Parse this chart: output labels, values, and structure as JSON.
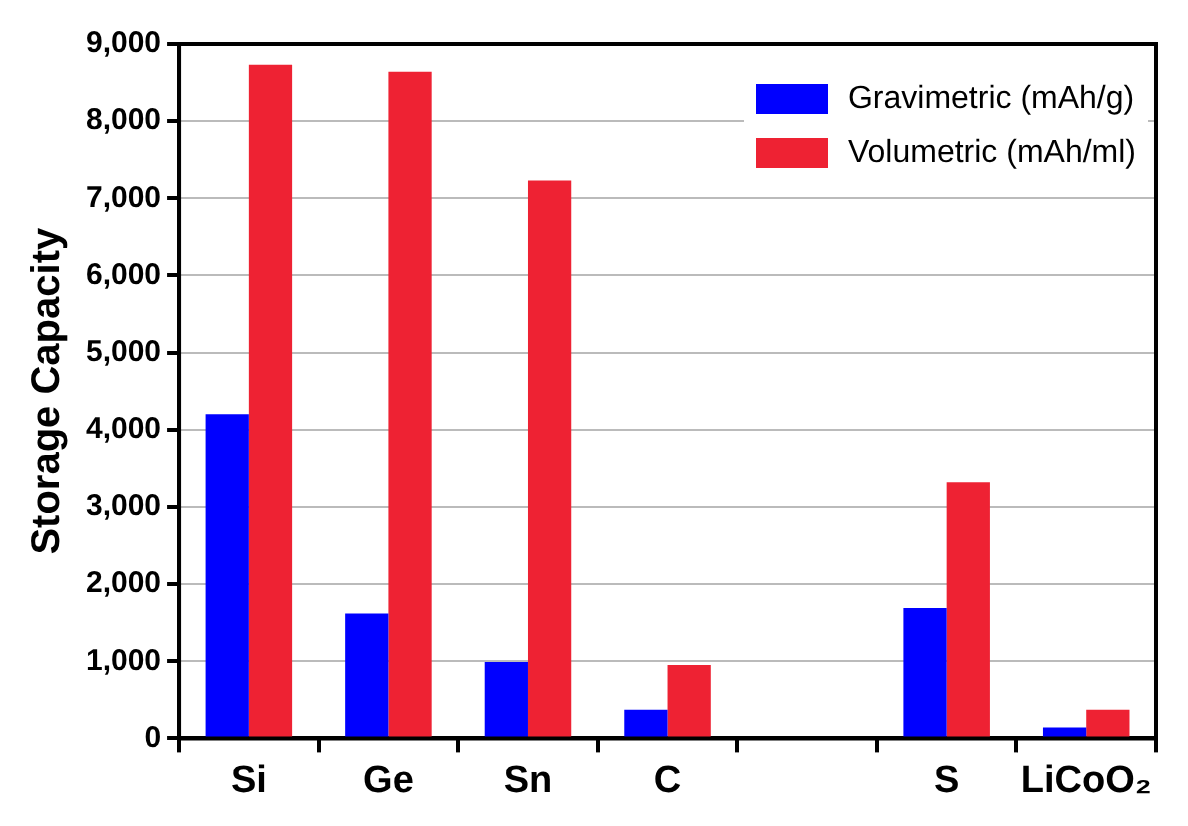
{
  "chart_data": {
    "type": "bar",
    "ylabel": "Storage Capacity",
    "categories": [
      "Si",
      "Ge",
      "Sn",
      "C",
      null,
      "S",
      "LiCoO₂"
    ],
    "series": [
      {
        "name": "Gravimetric (mAh/g)",
        "color": "#0000ff",
        "values": [
          4200,
          1620,
          990,
          370,
          null,
          1690,
          140
        ]
      },
      {
        "name": "Volumetric (mAh/ml)",
        "color": "#ee2233",
        "values": [
          8730,
          8640,
          7230,
          950,
          null,
          3320,
          370
        ]
      }
    ],
    "ylim": [
      0,
      9000
    ],
    "yticks": [
      {
        "value": 0,
        "label": "0"
      },
      {
        "value": 1000,
        "label": "1,000"
      },
      {
        "value": 2000,
        "label": "2,000"
      },
      {
        "value": 3000,
        "label": "3,000"
      },
      {
        "value": 4000,
        "label": "4,000"
      },
      {
        "value": 5000,
        "label": "5,000"
      },
      {
        "value": 6000,
        "label": "6,000"
      },
      {
        "value": 7000,
        "label": "7,000"
      },
      {
        "value": 8000,
        "label": "8,000"
      },
      {
        "value": 9000,
        "label": "9,000"
      }
    ],
    "grid": "y",
    "legend": "top right"
  }
}
